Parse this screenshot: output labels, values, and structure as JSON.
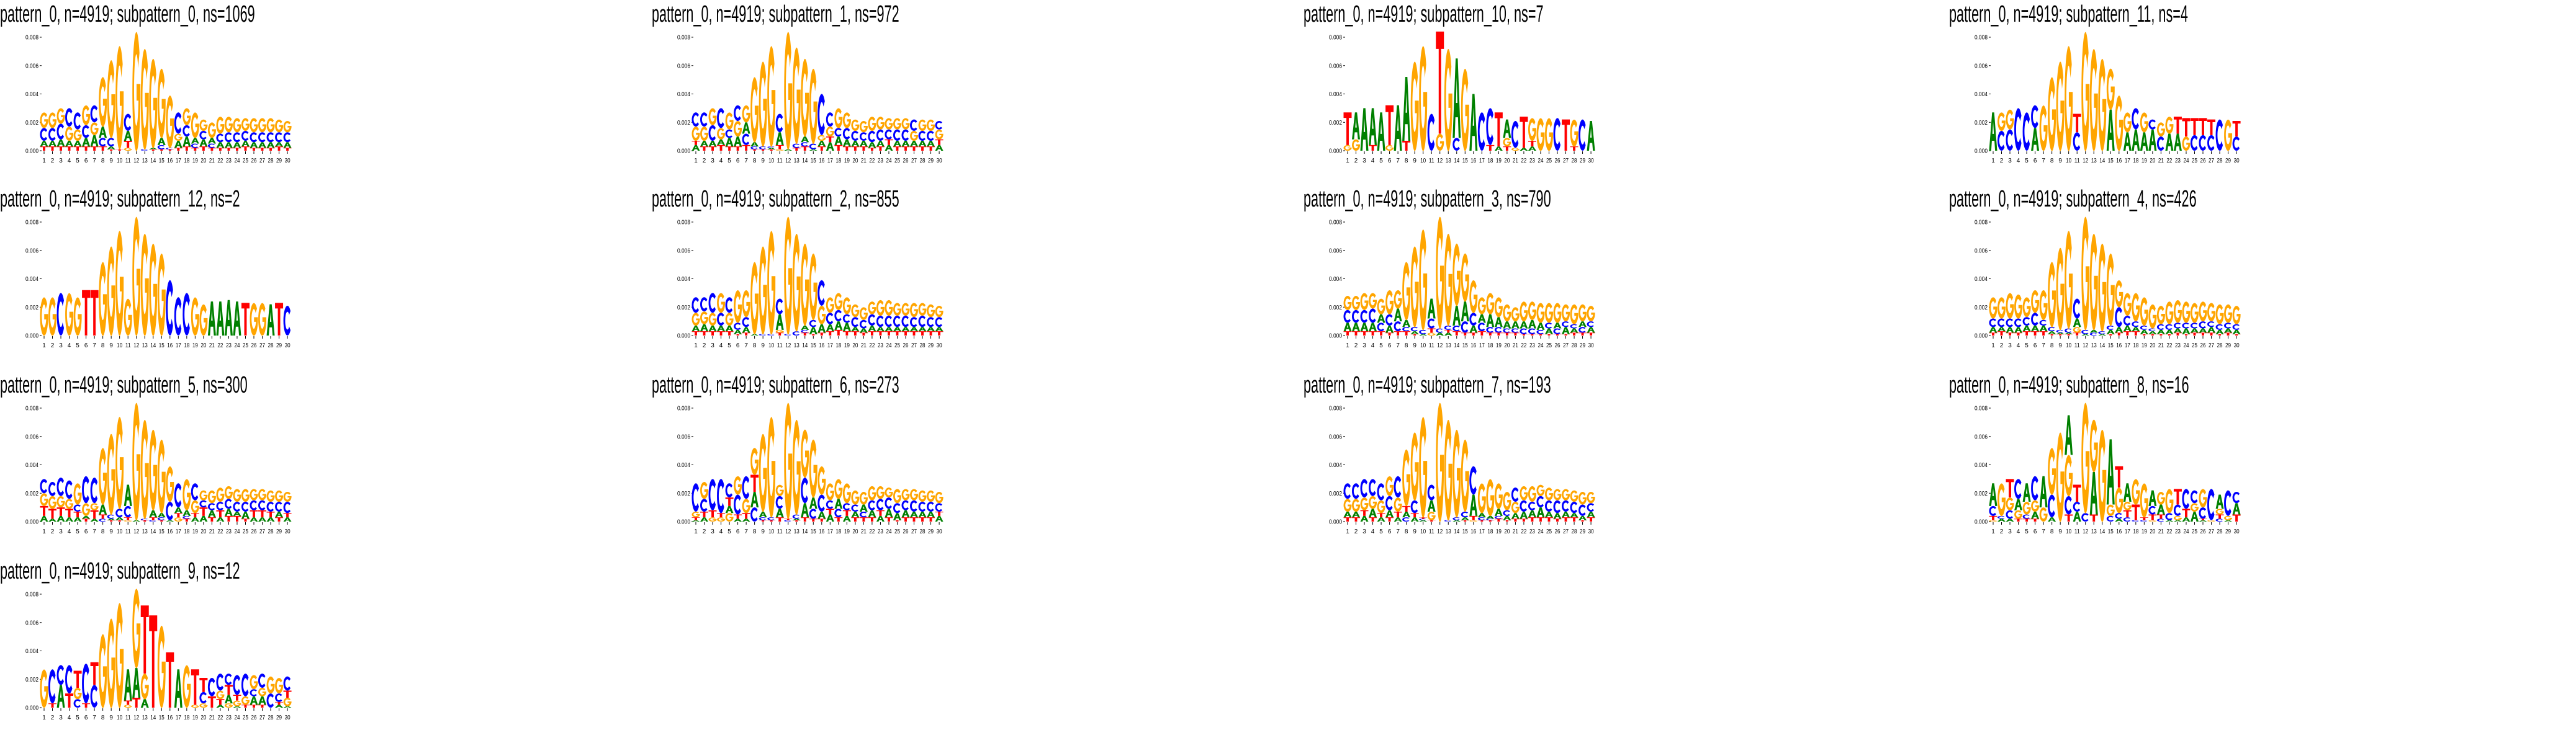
{
  "axes": {
    "y_ticks": [
      "0.000",
      "0.002",
      "0.004",
      "0.006",
      "0.008"
    ],
    "y_tick_values": [
      0,
      0.002,
      0.004,
      0.006,
      0.008
    ],
    "ylim": [
      0,
      0.0084
    ],
    "x_ticks": [
      "1",
      "2",
      "3",
      "4",
      "5",
      "6",
      "7",
      "8",
      "9",
      "10",
      "11",
      "12",
      "13",
      "14",
      "15",
      "16",
      "17",
      "18",
      "19",
      "20",
      "21",
      "22",
      "23",
      "24",
      "25",
      "26",
      "27",
      "28",
      "29",
      "30"
    ]
  },
  "colors": {
    "A": "#008000",
    "C": "#0000ff",
    "G": "#ffa500",
    "T": "#ff0000"
  },
  "chart_data": [
    {
      "type": "sequence-logo",
      "title": "pattern_0, n=4919; subpattern_0, ns=1069",
      "columns": [
        "T.0003 A.0004 C.0009 G.0011",
        "T.0003 A.0004 C.0009 G.0011",
        "T.0003 A.0005 C.0011 G.0011",
        "T.0003 A.0004 G.0010 C.0013",
        "T.0003 A.0004 G.0008 C.0012",
        "T.0003 A.0006 C.0009 G.0014",
        "T.0003 A.0008 G.0009 C.0012",
        "T.0003 C.0006 A.0008 G.0035",
        "T.0001 A.0002 C.0006 G.0055",
        "T.0001 G.0073",
        "G.0002 T.0005 A.0007 C.0012",
        "G.0084",
        "C.0001 G.0071",
        "T.0001 A.0001 G.0063",
        "T.0001 C.0003 A.0005 G.0049",
        "T.0001 C.0001 G.0037",
        "T.0002 A.0005 G.0005 C.0015",
        "T.0003 A.0007 C.0008 G.0012",
        "T.0002 C.0003 A.0004 G.0018",
        "T.0003 A.0005 C.0006 G.0008",
        "T.0002 C.0003 A.0004 G.0011",
        "T.0002 A.0004 C.0006 G.0012",
        "T.0002 A.0004 C.0007 G.0011",
        "T.0002 A.0004 C.0007 G.0010",
        "T.0003 A.0004 C.0007 G.0009",
        "T.0002 A.0004 C.0007 G.0010",
        "T.0002 A.0004 C.0007 G.0010",
        "T.0002 A.0004 C.0007 G.0010",
        "T.0003 A.0003 C.0007 G.0009",
        "T.0002 A.0004 C.0007 G.0008"
      ]
    },
    {
      "type": "sequence-logo",
      "title": "pattern_0, n=4919; subpattern_1, ns=972",
      "columns": [
        "A.0004 T.0003 G.0010 C.0010",
        "T.0003 A.0004 G.0010 C.0010",
        "T.0003 A.0004 C.0011 G.0012",
        "T.0004 A.0004 G.0008 C.0014",
        "T.0003 A.0006 C.0006 G.0012",
        "T.0003 A.0007 G.0011 C.0011",
        "T.0004 C.0008 A.0008 G.0012",
        "T.0001 C.0002 A.0003 G.0046",
        "T.0001 C.0002 G.0060",
        "T.0001 A.0001 C.0001 G.0071",
        "G.0001 T.0003 A.0009 C.0013",
        "A.0001 G.0083",
        "T.0002 C.0003 G.0068",
        "T.0003 C.0003 A.0004 G.0055",
        "A.0001 C.0004 G.0053",
        "T.0003 A.0004 G.0004 C.0029",
        "A.0006 T.0004 G.0007 C.0010",
        "T.0004 A.0006 C.0006 G.0014",
        "T.0003 A.0005 C.0008 G.0011",
        "T.0003 A.0004 C.0007 G.0008",
        "T.0003 A.0004 C.0006 G.0008",
        "T.0002 A.0004 C.0008 G.0010",
        "T.0003 A.0004 C.0008 G.0009",
        "A.0004 T.0004 C.0007 G.0008",
        "T.0003 A.0004 C.0008 G.0008",
        "T.0003 A.0004 C.0008 G.0008",
        "T.0003 A.0004 G.0007 C.0008",
        "T.0003 A.0004 C.0007 G.0008",
        "T.0003 A.0004 C.0007 G.0008",
        "A.0004 T.0004 G.0007 C.0006"
      ]
    },
    {
      "type": "sequence-logo",
      "title": "pattern_0, n=4919; subpattern_10, ns=7",
      "columns": [
        "G.0004 T.0023",
        "G.0008 A.0019",
        "A.0030",
        "T.0004 A.0026",
        "A.0027",
        "G.0004 T.0028",
        "A.0032",
        "T.0007 A.0045",
        "G.0063",
        "G.0074",
        "C.0026",
        "G.0012 T.0072",
        "G.0072",
        "C.0009 A.0056",
        "G.0058",
        "A.0040",
        "C.0027",
        "T.0004 C.0026",
        "A.0003 T.0024",
        "T.0003 G.0006 A.0013",
        "G.0002 C.0019",
        "A.0002 T.0022",
        "A.0003 T.0004 G.0016",
        "G.0023",
        "G.0023",
        "C.0023",
        "T.0022",
        "T.0003 G.0019",
        "C.0022",
        "A.0021"
      ]
    },
    {
      "type": "sequence-logo",
      "title": "pattern_0, n=4919; subpattern_11, ns=4",
      "columns": [
        "A.0027",
        "C.0014 G.0013",
        "C.0015 G.0014",
        "C.0030",
        "C.0027",
        "A.0016 C.0016",
        "G.0032",
        "G.0052",
        "G.0063",
        "G.0074",
        "C.0013 T.0013",
        "G.0084",
        "G.0072",
        "G.0065",
        "A.0029 G.0029",
        "G.0039",
        "A.0013 G.0014",
        "A.0015 C.0015",
        "A.0013 G.0014",
        "A.0015 C.0007",
        "C.0010 G.0010",
        "A.0012 G.0012",
        "A.0012 T.0012",
        "G.0010 T.0013",
        "C.0011 T.0012",
        "C.0011 T.0012",
        "C.0011 T.0011",
        "C.0022",
        "G.0022",
        "C.0010 T.0011"
      ]
    },
    {
      "type": "sequence-logo",
      "title": "pattern_0, n=4919; subpattern_12, ns=2",
      "columns": [
        "G.0027",
        "G.0027",
        "C.0030",
        "G.0030",
        "G.0027",
        "T.0032",
        "T.0032",
        "G.0052",
        "G.0063",
        "G.0074",
        "G.0026",
        "G.0084",
        "G.0072",
        "G.0065",
        "G.0058",
        "C.0039",
        "C.0027",
        "C.0030",
        "G.0027",
        "G.0022",
        "A.0024",
        "A.0024",
        "A.0025",
        "A.0024",
        "T.0023",
        "G.0023",
        "G.0023",
        "A.0022",
        "T.0023",
        "C.0021"
      ]
    },
    {
      "type": "sequence-logo",
      "title": "pattern_0, n=4919; subpattern_2, ns=855",
      "columns": [
        "T.0003 A.0004 G.0009 C.0011",
        "T.0003 A.0005 G.0009 C.0010",
        "T.0003 A.0004 G.0009 C.0014",
        "T.0003 A.0004 C.0009 G.0014",
        "T.0003 A.0004 G.0009 C.0011",
        "T.0001 A.0003 C.0005 G.0023",
        "T.0002 A.0004 C.0007 G.0019",
        "A.0001 G.0051",
        "C.0001 G.0062",
        "C.0001 G.0073",
        "T.0002 G.0002 A.0011 C.0011",
        "C.0001 G.0083",
        "C.0003 G.0069",
        "T.0002 C.0002 A.0003 G.0058",
        "T.0001 A.0005 C.0005 G.0047",
        "T.0002 A.0006 G.0013 C.0018",
        "T.0003 A.0005 C.0008 G.0011",
        "T.0004 A.0006 C.0008 G.0012",
        "T.0003 A.0006 C.0006 G.0012",
        "T.0003 A.0003 C.0007 G.0009",
        "T.0002 A.0003 C.0006 G.0009",
        "T.0003 A.0004 C.0008 G.0009",
        "T.0003 A.0003 C.0008 G.0011",
        "T.0003 A.0003 C.0008 G.0011",
        "T.0003 A.0003 C.0008 G.0009",
        "T.0003 A.0003 C.0008 G.0009",
        "T.0003 A.0003 C.0007 G.0010",
        "T.0003 A.0003 C.0008 G.0009",
        "T.0003 A.0003 C.0007 G.0009",
        "T.0003 A.0003 C.0007 G.0008"
      ]
    },
    {
      "type": "sequence-logo",
      "title": "pattern_0, n=4919; subpattern_3, ns=790",
      "columns": [
        "T.0003 A.0006 C.0009 G.0010",
        "T.0003 A.0006 C.0009 G.0010",
        "T.0003 A.0006 C.0009 G.0012",
        "T.0003 A.0006 C.0010 G.0011",
        "T.0003 C.0006 A.0006 G.0011",
        "T.0002 A.0005 C.0008 G.0017",
        "T.0003 C.0007 A.0009 G.0013",
        "T.0003 C.0003 A.0005 G.0041",
        "T.0001 A.0002 C.0003 G.0057",
        "A.0001 C.0003 G.0071",
        "G.0002 T.0003 C.0007 A.0014",
        "A.0002 C.0003 G.0079",
        "A.0002 T.0002 C.0003 G.0065",
        "T.0003 C.0004 A.0014 G.0044",
        "T.0002 C.0008 A.0014 G.0034",
        "T.0002 A.0005 C.0009 G.0023",
        "T.0003 C.0006 A.0006 G.0012",
        "T.0002 C.0004 A.0009 G.0015",
        "T.0002 C.0004 A.0007 G.0014",
        "T.0002 C.0003 A.0005 G.0012",
        "T.0002 C.0003 A.0005 G.0010",
        "T.0001 C.0004 A.0005 G.0014",
        "T.0001 C.0004 A.0006 G.0013",
        "T.0001 C.0003 A.0005 G.0014",
        "T.0001 A.0004 C.0004 G.0014",
        "T.0001 C.0004 A.0004 G.0014",
        "T.0001 A.0005 C.0004 G.0012",
        "T.0002 A.0003 C.0003 G.0014",
        "T.0002 C.0004 A.0004 G.0012",
        "T.0002 A.0004 C.0004 G.0011"
      ]
    },
    {
      "type": "sequence-logo",
      "title": "pattern_0, n=4919; subpattern_4, ns=426",
      "columns": [
        "T.0002 A.0004 C.0006 G.0015",
        "T.0003 A.0003 C.0006 G.0015",
        "T.0002 A.0004 C.0006 G.0018",
        "T.0002 A.0004 C.0006 G.0017",
        "T.0003 A.0004 C.0006 G.0014",
        "T.0003 A.0004 C.0009 G.0016",
        "T.0003 A.0004 C.0004 G.0021",
        "T.0001 A.0002 C.0003 G.0046",
        "T.0001 A.0001 C.0002 G.0058",
        "T.0001 A.0001 C.0003 G.0069",
        "T.0002 G.0004 A.0006 C.0014",
        "A.0001 C.0003 G.0080",
        "C.0002 A.0002 G.0068",
        "A.0001 C.0002 G.0062",
        "T.0001 A.0003 C.0003 G.0051",
        "T.0002 A.0004 C.0014 G.0019",
        "T.0003 A.0004 C.0007 G.0016",
        "T.0003 A.0003 C.0004 G.0020",
        "T.0001 A.0003 C.0003 G.0020",
        "T.0001 A.0002 C.0002 G.0017",
        "T.0001 A.0003 C.0004 G.0013",
        "T.0001 A.0003 C.0004 G.0016",
        "T.0002 A.0003 C.0004 G.0016",
        "T.0001 A.0004 C.0004 G.0015",
        "T.0002 A.0003 C.0004 G.0014",
        "T.0002 A.0003 C.0005 G.0014",
        "T.0002 A.0004 C.0004 G.0013",
        "T.0001 A.0003 C.0004 G.0014",
        "T.0002 A.0003 C.0004 G.0013",
        "T.0001 A.0003 C.0004 G.0013"
      ]
    },
    {
      "type": "sequence-logo",
      "title": "pattern_0, n=4919; subpattern_5, ns=300",
      "columns": [
        "A.0004 T.0007 G.0009 C.0010",
        "A.0002 T.0007 G.0009 C.0010",
        "A.0004 T.0006 G.0008 C.0013",
        "A.0003 T.0006 G.0007 C.0013",
        "A.0003 T.0004 C.0005 G.0015",
        "T.0002 A.0002 G.0009 C.0019",
        "A.0002 T.0006 G.0005 C.0018",
        "C.0002 T.0003 A.0007 G.0040",
        "T.0001 A.0001 C.0003 G.0057",
        "T.0001 A.0002 C.0006 G.0065",
        "G.0001 T.0002 C.0008 A.0015",
        "A.0001 G.0083",
        "T.0001 C.0001 G.0070",
        "C.0001 T.0002 A.0005 G.0057",
        "T.0001 C.0002 A.0003 G.0052",
        "A.0001 C.0013 G.0025",
        "G.0003 T.0003 A.0004 C.0017",
        "T.0002 C.0002 A.0004 G.0022",
        "A.0003 T.0003 G.0009 C.0012",
        "A.0004 T.0006 C.0005 G.0007",
        "T.0003 A.0005 C.0005 G.0009",
        "A.0003 T.0005 C.0006 G.0010",
        "T.0004 A.0005 C.0007 G.0009",
        "T.0004 A.0003 C.0007 G.0009",
        "T.0002 A.0005 C.0007 G.0009",
        "A.0003 T.0005 C.0007 G.0008",
        "A.0003 T.0005 C.0007 G.0008",
        "A.0003 T.0004 C.0007 G.0008",
        "T.0003 A.0004 C.0007 G.0008",
        "A.0003 T.0003 C.0008 G.0007"
      ]
    },
    {
      "type": "sequence-logo",
      "title": "pattern_0, n=4919; subpattern_6, ns=273",
      "columns": [
        "A.0001 T.0002 G.0004 C.0020",
        "A.0003 T.0004 C.0009 G.0012",
        "G.0003 T.0005 C.0022",
        "G.0003 T.0003 C.0024",
        "G.0006 A.0005 T.0006 C.0010",
        "A.0002 T.0003 C.0014 G.0013",
        "A.0002 T.0004 G.0010 C.0016",
        "C.0010 A.0011 T.0012 G.0019",
        "T.0001 C.0002 A.0004 G.0055",
        "T.0001 C.0002 G.0071",
        "T.0003 A.0006 C.0009 G.0008",
        "C.0001 T.0001 G.0082",
        "T.0001 A.0001 C.0003 G.0067",
        "T.0003 A.0010 C.0018 G.0034",
        "T.0002 C.0007 A.0008 G.0041",
        "T.0002 A.0005 C.0012 G.0020",
        "A.0005 T.0004 C.0006 G.0012",
        "T.0003 C.0006 A.0007 G.0014",
        "A.0004 T.0004 C.0005 G.0014",
        "T.0003 A.0004 C.0005 G.0010",
        "T.0003 C.0004 A.0005 G.0009",
        "T.0003 A.0005 C.0007 G.0010",
        "A.0004 T.0004 C.0008 G.0009",
        "T.0003 A.0006 C.0008 G.0007",
        "T.0001 A.0005 C.0007 G.0010",
        "T.0003 A.0005 C.0007 G.0008",
        "T.0003 A.0004 C.0008 G.0008",
        "T.0003 A.0004 C.0007 G.0008",
        "T.0003 A.0004 C.0007 G.0008",
        "A.0004 T.0003 C.0006 G.0008"
      ]
    },
    {
      "type": "sequence-logo",
      "title": "pattern_0, n=4919; subpattern_7, ns=193",
      "columns": [
        "T.0003 A.0004 G.0009 C.0011",
        "T.0003 A.0004 G.0009 C.0011",
        "A.0004 T.0004 G.0009 C.0013",
        "T.0003 A.0006 G.0009 C.0012",
        "A.0003 T.0003 G.0009 C.0012",
        "T.0003 A.0005 C.0010 G.0014",
        "A.0003 T.0004 G.0010 C.0015",
        "C.0003 A.0004 T.0004 G.0040",
        "A.0003 T.0003 C.0009 G.0048",
        "A.0001 C.0001 T.0001 G.0071",
        "T.0001 G.0006 A.0008 C.0011",
        "G.0084",
        "C.0001 G.0071",
        "A.0001 C.0002 G.0062",
        "T.0001 A.0002 C.0004 G.0051",
        "G.0001 T.0003 A.0015 C.0020",
        "T.0001 C.0002 A.0003 G.0021",
        "T.0001 C.0001 A.0002 G.0026",
        "T.0002 C.0002 A.0005 G.0018",
        "T.0001 A.0003 C.0004 G.0013",
        "T.0002 A.0004 G.0008 C.0010",
        "T.0002 A.0005 C.0008 G.0010",
        "T.0003 A.0005 C.0006 G.0011",
        "T.0003 A.0007 C.0008 G.0008",
        "T.0003 A.0004 C.0008 G.0009",
        "T.0002 A.0004 C.0009 G.0008",
        "T.0003 A.0004 C.0008 G.0008",
        "T.0003 A.0003 C.0008 G.0008",
        "T.0001 A.0003 C.0008 G.0009",
        "T.0003 A.0004 C.0006 G.0008"
      ]
    },
    {
      "type": "sequence-logo",
      "title": "pattern_0, n=4919; subpattern_8, ns=16",
      "columns": [
        "G.0001 T.0003 C.0007 A.0016",
        "A.0002 C.0002 G.0023",
        "A.0002 C.0006 G.0009 T.0013",
        "T.0002 G.0006 A.0008 C.0014",
        "T.0002 C.0003 G.0009 A.0013",
        "T.0002 A.0005 G.0008 C.0017",
        "G.0010 A.0022",
        "A.0003 C.0016 G.0033",
        "G.0063",
        "T.0005 C.0013 G.0029 A.0028",
        "A.0007 C.0007 T.0012",
        "C.0006 G.0078",
        "T.0005 A.0030 G.0037",
        "G.0065",
        "C.0004 G.0008 A.0046",
        "A.0002 C.0004 G.0018 T.0015",
        "C.0003 T.0005 G.0006 A.0013",
        "C.0001 T.0011 G.0018",
        "C.0001 T.0002 G.0024",
        "G.0001 T.0004 C.0006 A.0011",
        "C.0002 T.0003 A.0007 G.0009",
        "A.0001 C.0005 G.0017",
        "A.0001 G.0003 C.0008 T.0011",
        "A.0003 T.0006 C.0014",
        "A.0007 G.0006 C.0009",
        "A.0001 T.0001 C.0008 G.0013",
        "G.0001 C.0022",
        "C.0002 T.0003 G.0004 A.0010",
        "A.0001 G.0003 C.0018",
        "T.0005 A.0008 C.0008"
      ]
    },
    {
      "type": "sequence-logo",
      "title": "pattern_0, n=4919; subpattern_9, ns=12",
      "columns": [
        "G.0027",
        "T.0003 C.0024",
        "A.0016 C.0014",
        "T.0010 C.0020",
        "C.0006 G.0008 T.0012",
        "T.0003 C.0028",
        "C.0016 T.0016",
        "G.0052",
        "G.0063",
        "G.0074",
        "G.0002 T.0003 A.0022",
        "T.0007 A.0021 G.0056",
        "A.0006 G.0018 T.0048",
        "T.0065",
        "G.0058",
        "T.0039",
        "A.0027",
        "G.0030",
        "G.0002 T.0025",
        "G.0003 C.0008 T.0010",
        "T.0008 C.0013",
        "A.0002 T.0004 G.0006 C.0012",
        "G.0003 A.0006 T.0007 C.0008",
        "A.0001 G.0004 T.0004 C.0014",
        "T.0002 G.0006 C.0016",
        "T.0002 A.0006 C.0005 G.0010",
        "T.0002 A.0006 G.0006 C.0010",
        "C.0010 G.0012",
        "A.0002 T.0002 C.0006 G.0011",
        "A.0001 G.0006 T.0005 C.0010"
      ]
    }
  ]
}
